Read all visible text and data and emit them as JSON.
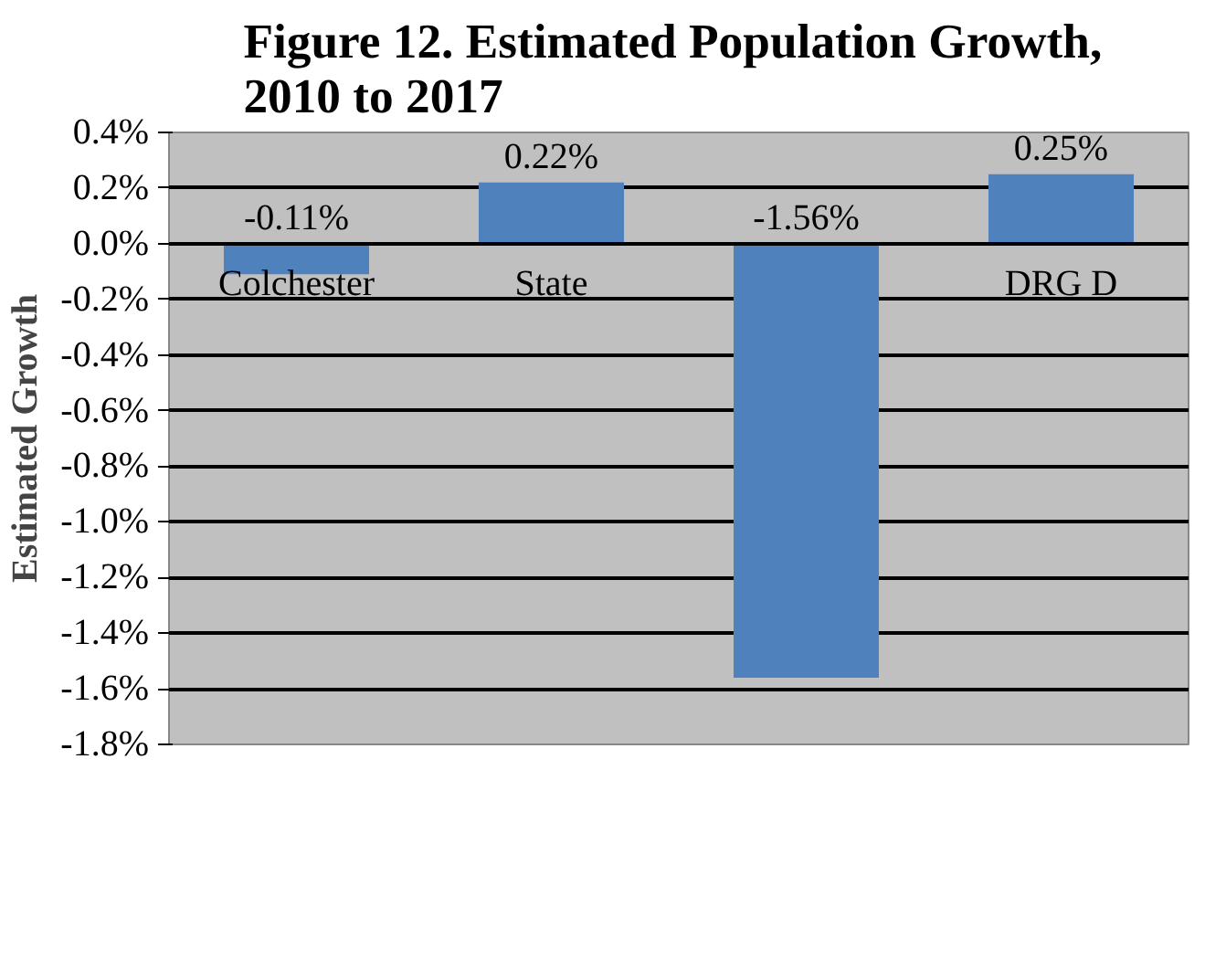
{
  "chart_data": {
    "type": "bar",
    "title": "Figure 12.  Estimated Population Growth,\n2010 to 2017",
    "ylabel": "Estimated Growth",
    "categories": [
      "Colchester",
      "State",
      null,
      "DRG D"
    ],
    "values": [
      -0.11,
      0.22,
      -1.56,
      0.25
    ],
    "color": "#4f81bd",
    "value_labels": [
      "-0.11%",
      "0.22%",
      "-1.56%",
      "0.25%"
    ],
    "ylim": [
      -1.8,
      0.4
    ],
    "yticks": [
      {
        "value": 0.4,
        "label": "0.4%"
      },
      {
        "value": 0.2,
        "label": "0.2%"
      },
      {
        "value": 0.0,
        "label": "0.0%"
      },
      {
        "value": -0.2,
        "label": "-0.2%"
      },
      {
        "value": -0.4,
        "label": "-0.4%"
      },
      {
        "value": -0.6,
        "label": "-0.6%"
      },
      {
        "value": -0.8,
        "label": "-0.8%"
      },
      {
        "value": -1.0,
        "label": "-1.0%"
      },
      {
        "value": -1.2,
        "label": "-1.2%"
      },
      {
        "value": -1.4,
        "label": "-1.4%"
      },
      {
        "value": -1.6,
        "label": "-1.6%"
      },
      {
        "value": -1.8,
        "label": "-1.8%"
      }
    ],
    "grid": "y"
  }
}
